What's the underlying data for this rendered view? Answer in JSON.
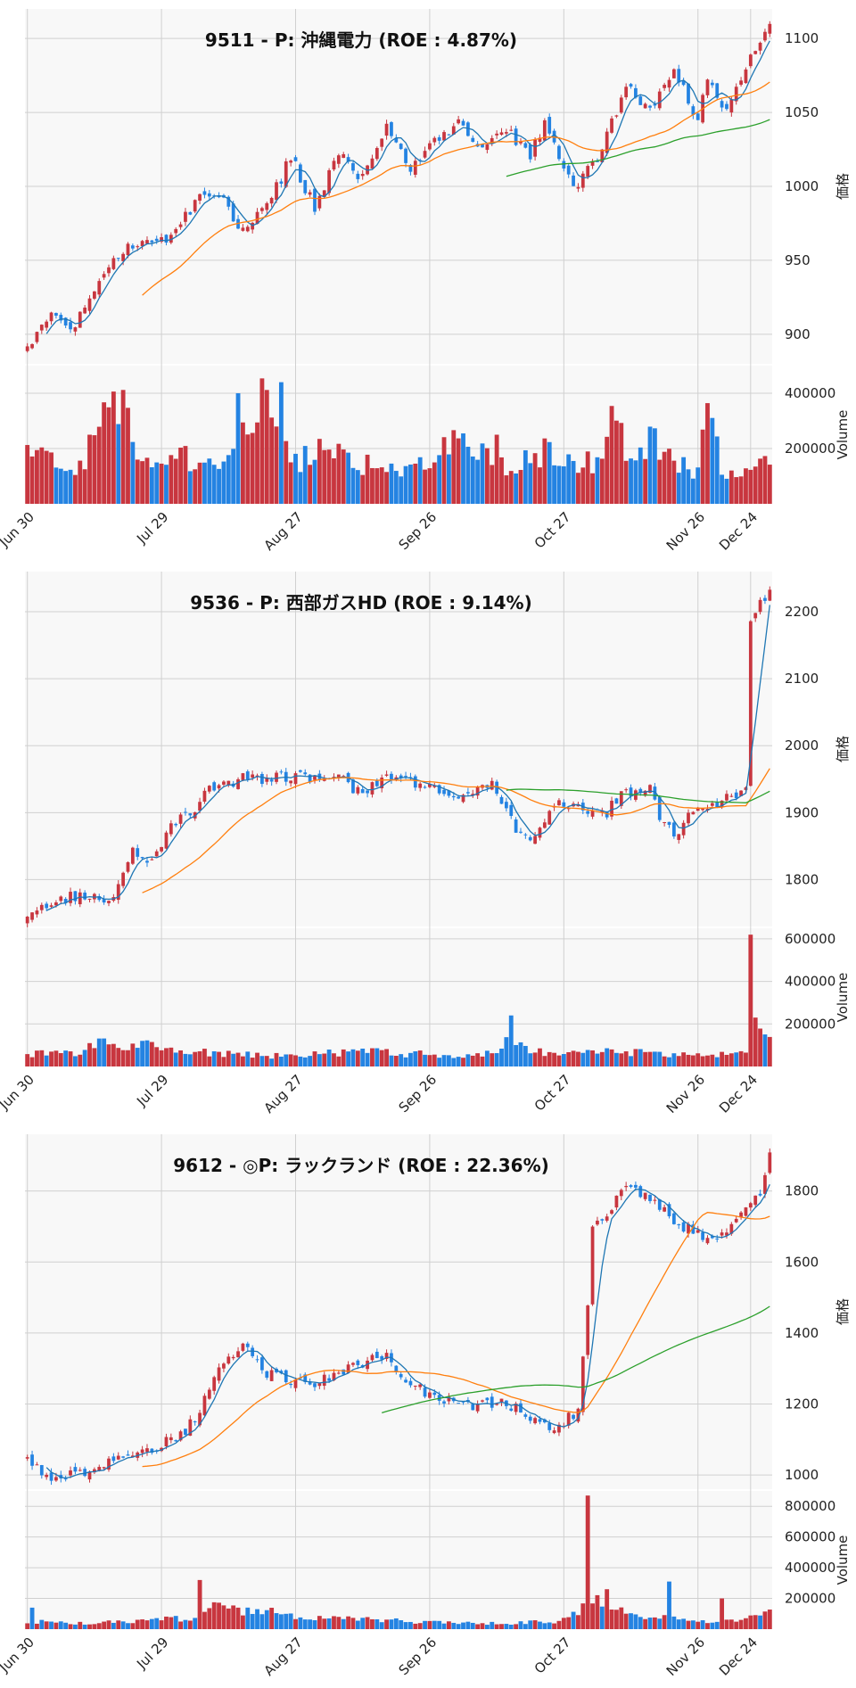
{
  "colors": {
    "up": "#c8363f",
    "down": "#2483e2",
    "ma_short": "#1f77b4",
    "ma_mid": "#ff7f0e",
    "ma_long": "#2ca02c",
    "plot_bg": "#f8f8f8",
    "grid": "#d0d0d0"
  },
  "x_ticks": [
    "Jun 30",
    "Jul 29",
    "Aug 27",
    "Sep 26",
    "Oct 27",
    "Nov 26",
    "Dec 24"
  ],
  "chart_data": [
    {
      "type": "candlestick",
      "title": "9511 - P: 沖縄電力 (ROE : 4.87%)",
      "ylabel_price": "価格",
      "ylabel_volume": "Volume",
      "price_ylim": [
        880,
        1120
      ],
      "price_ticks": [
        900,
        950,
        1000,
        1050,
        1100
      ],
      "volume_ylim": [
        0,
        500000
      ],
      "volume_ticks": [
        200000,
        400000
      ],
      "grid": true,
      "price_path": [
        [
          0,
          890
        ],
        [
          5,
          915
        ],
        [
          10,
          905
        ],
        [
          18,
          955
        ],
        [
          25,
          960
        ],
        [
          30,
          965
        ],
        [
          35,
          990
        ],
        [
          40,
          995
        ],
        [
          45,
          970
        ],
        [
          50,
          985
        ],
        [
          55,
          1020
        ],
        [
          60,
          985
        ],
        [
          65,
          1025
        ],
        [
          70,
          1005
        ],
        [
          75,
          1040
        ],
        [
          80,
          1010
        ],
        [
          85,
          1030
        ],
        [
          90,
          1045
        ],
        [
          95,
          1025
        ],
        [
          100,
          1040
        ],
        [
          105,
          1020
        ],
        [
          108,
          1045
        ],
        [
          112,
          1010
        ],
        [
          115,
          1000
        ],
        [
          120,
          1025
        ],
        [
          125,
          1070
        ],
        [
          130,
          1050
        ],
        [
          135,
          1075
        ],
        [
          138,
          1060
        ],
        [
          140,
          1045
        ],
        [
          142,
          1075
        ],
        [
          145,
          1050
        ],
        [
          150,
          1080
        ],
        [
          155,
          1110
        ]
      ],
      "ma_long_start": 100,
      "volume_keys": [
        [
          0,
          180000
        ],
        [
          10,
          120000
        ],
        [
          17,
          310000
        ],
        [
          20,
          450000
        ],
        [
          22,
          200000
        ],
        [
          30,
          160000
        ],
        [
          35,
          170000
        ],
        [
          40,
          120000
        ],
        [
          45,
          320000
        ],
        [
          50,
          430000
        ],
        [
          55,
          160000
        ],
        [
          60,
          170000
        ],
        [
          65,
          240000
        ],
        [
          70,
          140000
        ],
        [
          80,
          120000
        ],
        [
          90,
          240000
        ],
        [
          95,
          170000
        ],
        [
          100,
          120000
        ],
        [
          108,
          190000
        ],
        [
          115,
          140000
        ],
        [
          120,
          160000
        ],
        [
          122,
          440000
        ],
        [
          125,
          130000
        ],
        [
          130,
          230000
        ],
        [
          135,
          160000
        ],
        [
          140,
          120000
        ],
        [
          142,
          370000
        ],
        [
          145,
          110000
        ],
        [
          150,
          130000
        ],
        [
          155,
          180000
        ]
      ],
      "volume_spikes": [
        [
          44,
          400000
        ],
        [
          53,
          440000
        ],
        [
          98,
          250000
        ]
      ]
    },
    {
      "type": "candlestick",
      "title": "9536 - P: 西部ガスHD (ROE : 9.14%)",
      "ylabel_price": "価格",
      "ylabel_volume": "Volume",
      "price_ylim": [
        1730,
        2260
      ],
      "price_ticks": [
        1800,
        1900,
        2000,
        2100,
        2200
      ],
      "volume_ylim": [
        0,
        650000
      ],
      "volume_ticks": [
        200000,
        400000,
        600000
      ],
      "grid": true,
      "price_path": [
        [
          0,
          1740
        ],
        [
          5,
          1765
        ],
        [
          10,
          1775
        ],
        [
          18,
          1770
        ],
        [
          22,
          1840
        ],
        [
          25,
          1820
        ],
        [
          30,
          1880
        ],
        [
          35,
          1900
        ],
        [
          38,
          1940
        ],
        [
          45,
          1950
        ],
        [
          55,
          1955
        ],
        [
          65,
          1950
        ],
        [
          70,
          1930
        ],
        [
          75,
          1960
        ],
        [
          80,
          1945
        ],
        [
          85,
          1935
        ],
        [
          90,
          1920
        ],
        [
          95,
          1945
        ],
        [
          98,
          1935
        ],
        [
          102,
          1870
        ],
        [
          106,
          1860
        ],
        [
          110,
          1910
        ],
        [
          115,
          1910
        ],
        [
          120,
          1895
        ],
        [
          125,
          1930
        ],
        [
          130,
          1940
        ],
        [
          132,
          1895
        ],
        [
          135,
          1870
        ],
        [
          140,
          1905
        ],
        [
          145,
          1920
        ],
        [
          150,
          1935
        ],
        [
          151,
          2180
        ],
        [
          155,
          2240
        ]
      ],
      "ma_long_start": 100,
      "volume_keys": [
        [
          0,
          60000
        ],
        [
          10,
          60000
        ],
        [
          17,
          120000
        ],
        [
          20,
          80000
        ],
        [
          25,
          100000
        ],
        [
          30,
          80000
        ],
        [
          40,
          60000
        ],
        [
          50,
          50000
        ],
        [
          60,
          60000
        ],
        [
          70,
          70000
        ],
        [
          80,
          60000
        ],
        [
          90,
          50000
        ],
        [
          98,
          60000
        ],
        [
          100,
          160000
        ],
        [
          105,
          80000
        ],
        [
          110,
          60000
        ],
        [
          120,
          70000
        ],
        [
          125,
          70000
        ],
        [
          130,
          60000
        ],
        [
          140,
          60000
        ],
        [
          150,
          60000
        ],
        [
          153,
          140000
        ],
        [
          155,
          150000
        ]
      ],
      "volume_spikes": [
        [
          101,
          240000
        ],
        [
          151,
          620000
        ],
        [
          152,
          230000
        ]
      ]
    },
    {
      "type": "candlestick",
      "title": "9612 - ◎P: ラックランド (ROE : 22.36%)",
      "ylabel_price": "価格",
      "ylabel_volume": "Volume",
      "price_ylim": [
        960,
        1960
      ],
      "price_ticks": [
        1000,
        1200,
        1400,
        1600,
        1800
      ],
      "volume_ylim": [
        0,
        900000
      ],
      "volume_ticks": [
        200000,
        400000,
        600000,
        800000
      ],
      "grid": true,
      "price_path": [
        [
          0,
          1040
        ],
        [
          5,
          995
        ],
        [
          10,
          1000
        ],
        [
          15,
          1030
        ],
        [
          20,
          1055
        ],
        [
          28,
          1080
        ],
        [
          35,
          1150
        ],
        [
          40,
          1300
        ],
        [
          45,
          1380
        ],
        [
          50,
          1290
        ],
        [
          55,
          1270
        ],
        [
          60,
          1265
        ],
        [
          65,
          1280
        ],
        [
          70,
          1320
        ],
        [
          75,
          1330
        ],
        [
          80,
          1260
        ],
        [
          85,
          1215
        ],
        [
          90,
          1200
        ],
        [
          95,
          1195
        ],
        [
          100,
          1200
        ],
        [
          105,
          1160
        ],
        [
          110,
          1135
        ],
        [
          115,
          1175
        ],
        [
          117,
          1480
        ],
        [
          118,
          1700
        ],
        [
          120,
          1720
        ],
        [
          125,
          1820
        ],
        [
          130,
          1780
        ],
        [
          135,
          1710
        ],
        [
          140,
          1680
        ],
        [
          145,
          1670
        ],
        [
          150,
          1740
        ],
        [
          153,
          1790
        ],
        [
          155,
          1900
        ]
      ],
      "ma_long_start": 30,
      "volume_keys": [
        [
          0,
          50000
        ],
        [
          10,
          40000
        ],
        [
          20,
          50000
        ],
        [
          30,
          70000
        ],
        [
          35,
          60000
        ],
        [
          38,
          150000
        ],
        [
          45,
          110000
        ],
        [
          50,
          120000
        ],
        [
          55,
          90000
        ],
        [
          60,
          70000
        ],
        [
          70,
          70000
        ],
        [
          80,
          50000
        ],
        [
          90,
          40000
        ],
        [
          100,
          40000
        ],
        [
          110,
          50000
        ],
        [
          114,
          90000
        ],
        [
          117,
          200000
        ],
        [
          120,
          160000
        ],
        [
          125,
          120000
        ],
        [
          130,
          70000
        ],
        [
          134,
          80000
        ],
        [
          140,
          50000
        ],
        [
          145,
          60000
        ],
        [
          150,
          60000
        ],
        [
          155,
          120000
        ]
      ],
      "volume_spikes": [
        [
          1,
          140000
        ],
        [
          36,
          320000
        ],
        [
          44,
          140000
        ],
        [
          117,
          870000
        ],
        [
          121,
          260000
        ],
        [
          134,
          310000
        ],
        [
          145,
          200000
        ]
      ]
    }
  ]
}
